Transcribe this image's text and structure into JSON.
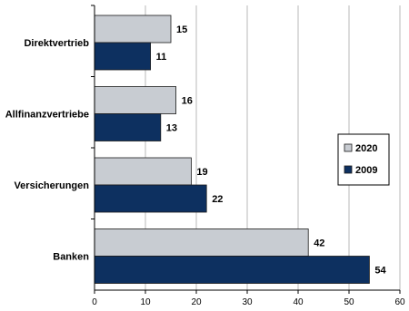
{
  "chart_data": {
    "type": "bar",
    "orientation": "horizontal",
    "categories": [
      "Direktvertrieb",
      "Allfinanzvertriebe",
      "Versicherungen",
      "Banken"
    ],
    "series": [
      {
        "name": "2020",
        "color": "#c8ccd2",
        "values": [
          15,
          16,
          19,
          42
        ]
      },
      {
        "name": "2009",
        "color": "#0d3060",
        "values": [
          11,
          13,
          22,
          54
        ]
      }
    ],
    "xlim": [
      0,
      60
    ],
    "xticks": [
      "0",
      "10",
      "20",
      "30",
      "40",
      "50",
      "60"
    ],
    "grid": true,
    "legend_position": "right",
    "title": "",
    "xlabel": "",
    "ylabel": ""
  }
}
